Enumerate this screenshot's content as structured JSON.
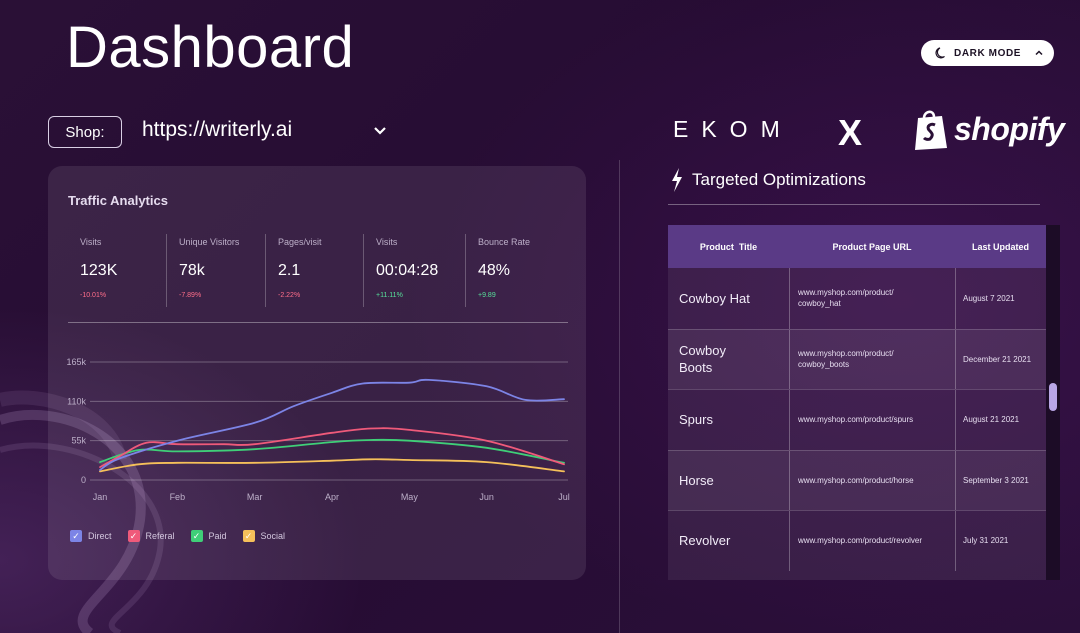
{
  "header": {
    "title": "Dashboard",
    "dark_mode_label": "DARK MODE"
  },
  "shop": {
    "label": "Shop:",
    "url": "https://writerly.ai"
  },
  "brands": {
    "ekom": "EKOM",
    "x": "X",
    "shopify": "shopify"
  },
  "traffic": {
    "title": "Traffic Analytics",
    "stats": [
      {
        "label": "Visits",
        "value": "123K",
        "delta": "-10.01%",
        "trend": "neg"
      },
      {
        "label": "Unique Visitors",
        "value": "78k",
        "delta": "-7.89%",
        "trend": "neg"
      },
      {
        "label": "Pages/visit",
        "value": "2.1",
        "delta": "-2.22%",
        "trend": "neg"
      },
      {
        "label": "Visits",
        "value": "00:04:28",
        "delta": "+11.11%",
        "trend": "pos"
      },
      {
        "label": "Bounce Rate",
        "value": "48%",
        "delta": "+9.89",
        "trend": "pos"
      }
    ],
    "legend": [
      "Direct",
      "Referal",
      "Paid",
      "Social"
    ]
  },
  "chart_data": {
    "type": "line",
    "title": "",
    "xlabel": "",
    "ylabel": "",
    "x": [
      "Jan",
      "Feb",
      "Mar",
      "Apr",
      "May",
      "Jun",
      "Jul"
    ],
    "y_ticks": [
      "0",
      "55k",
      "110k",
      "165k"
    ],
    "ylim": [
      0,
      165000
    ],
    "legend_position": "bottom-left",
    "series": [
      {
        "name": "Direct",
        "color": "#7c84e6",
        "values": [
          [
            0.0,
            14000
          ],
          [
            0.25,
            30000
          ],
          [
            1.0,
            55000
          ],
          [
            2.0,
            80000
          ],
          [
            2.5,
            103000
          ],
          [
            3.0,
            122000
          ],
          [
            3.4,
            135000
          ],
          [
            4.0,
            136000
          ],
          [
            4.25,
            140000
          ],
          [
            5.0,
            131000
          ],
          [
            5.5,
            112000
          ],
          [
            6.0,
            113000
          ]
        ]
      },
      {
        "name": "Referal",
        "color": "#ef5a7a",
        "values": [
          [
            0.0,
            18000
          ],
          [
            0.25,
            33000
          ],
          [
            0.6,
            52000
          ],
          [
            1.0,
            50000
          ],
          [
            1.6,
            50000
          ],
          [
            2.0,
            50000
          ],
          [
            3.0,
            66000
          ],
          [
            3.5,
            72000
          ],
          [
            4.0,
            70000
          ],
          [
            5.0,
            55000
          ],
          [
            6.0,
            22000
          ]
        ]
      },
      {
        "name": "Paid",
        "color": "#3fcf78",
        "values": [
          [
            0.0,
            25000
          ],
          [
            0.5,
            42000
          ],
          [
            1.0,
            40000
          ],
          [
            2.0,
            43000
          ],
          [
            3.0,
            53000
          ],
          [
            3.5,
            56000
          ],
          [
            4.0,
            55000
          ],
          [
            5.0,
            45000
          ],
          [
            6.0,
            24000
          ]
        ]
      },
      {
        "name": "Social",
        "color": "#f5c05a",
        "values": [
          [
            0.0,
            12000
          ],
          [
            0.5,
            22000
          ],
          [
            1.0,
            24000
          ],
          [
            2.0,
            24000
          ],
          [
            3.0,
            27000
          ],
          [
            3.5,
            29000
          ],
          [
            4.0,
            28000
          ],
          [
            5.0,
            25000
          ],
          [
            6.0,
            12000
          ]
        ]
      }
    ]
  },
  "optimizations": {
    "title": "Targeted Optimizations",
    "columns": [
      "Product  Title",
      "Product Page URL",
      "Last Updated"
    ],
    "rows": [
      {
        "title": "Cowboy Hat",
        "url": "www.myshop.com/product/\ncowboy_hat",
        "date": "August 7 2021"
      },
      {
        "title": "Cowboy\nBoots",
        "url": "www.myshop.com/product/\ncowboy_boots",
        "date": "December 21 2021"
      },
      {
        "title": "Spurs",
        "url": "www.myshop.com/product/spurs",
        "date": "August 21 2021"
      },
      {
        "title": "Horse",
        "url": "www.myshop.com/product/horse",
        "date": "September 3 2021"
      },
      {
        "title": "Revolver",
        "url": "www.myshop.com/product/revolver",
        "date": "July 31  2021"
      }
    ]
  },
  "colors": {
    "accent_header": "#5a3a86",
    "background": "#2a1036"
  }
}
